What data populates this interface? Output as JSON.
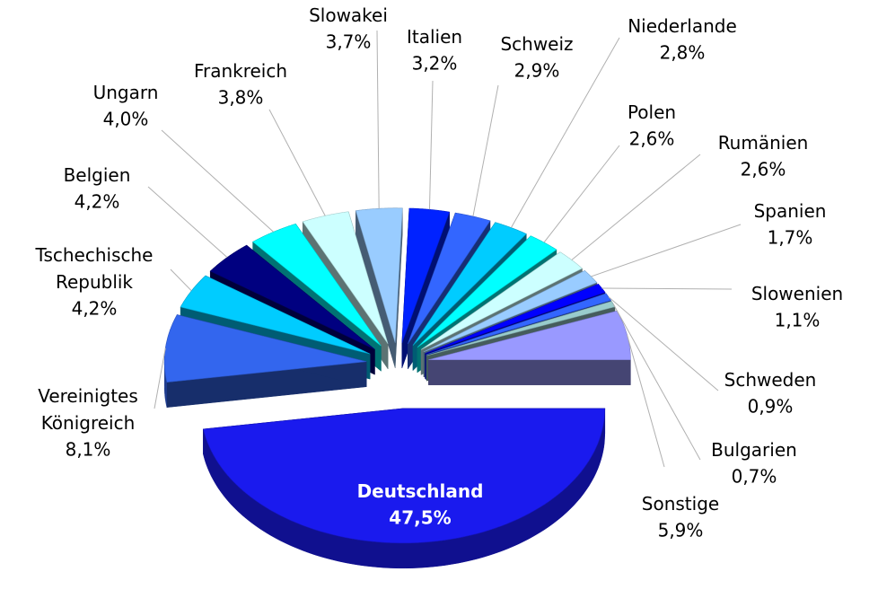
{
  "chart_data": {
    "type": "pie3d",
    "categories": [
      "Deutschland",
      "Vereinigtes Königreich",
      "Tschechische Republik",
      "Belgien",
      "Ungarn",
      "Frankreich",
      "Slowakei",
      "Italien",
      "Schweiz",
      "Niederlande",
      "Polen",
      "Rumänien",
      "Spanien",
      "Slowenien",
      "Schweden",
      "Bulgarien",
      "Sonstige"
    ],
    "values": [
      47.5,
      8.1,
      4.2,
      4.2,
      4.0,
      3.8,
      3.7,
      3.2,
      2.9,
      2.8,
      2.6,
      2.6,
      1.7,
      1.1,
      0.9,
      0.7,
      5.9
    ],
    "value_labels": [
      "47,5%",
      "8,1%",
      "4,2%",
      "4,2%",
      "4,0%",
      "3,8%",
      "3,7%",
      "3,2%",
      "2,9%",
      "2,8%",
      "2,6%",
      "2,6%",
      "1,7%",
      "1,1%",
      "0,9%",
      "0,7%",
      "5,9%"
    ],
    "colors": [
      "#1a1aee",
      "#3366ee",
      "#00ccff",
      "#000080",
      "#00ffff",
      "#ccffff",
      "#99ccff",
      "#0022ff",
      "#3366ff",
      "#00ccff",
      "#00ffff",
      "#ccffff",
      "#99ccff",
      "#0000ff",
      "#3366ff",
      "#99cccc",
      "#9999ff"
    ]
  }
}
